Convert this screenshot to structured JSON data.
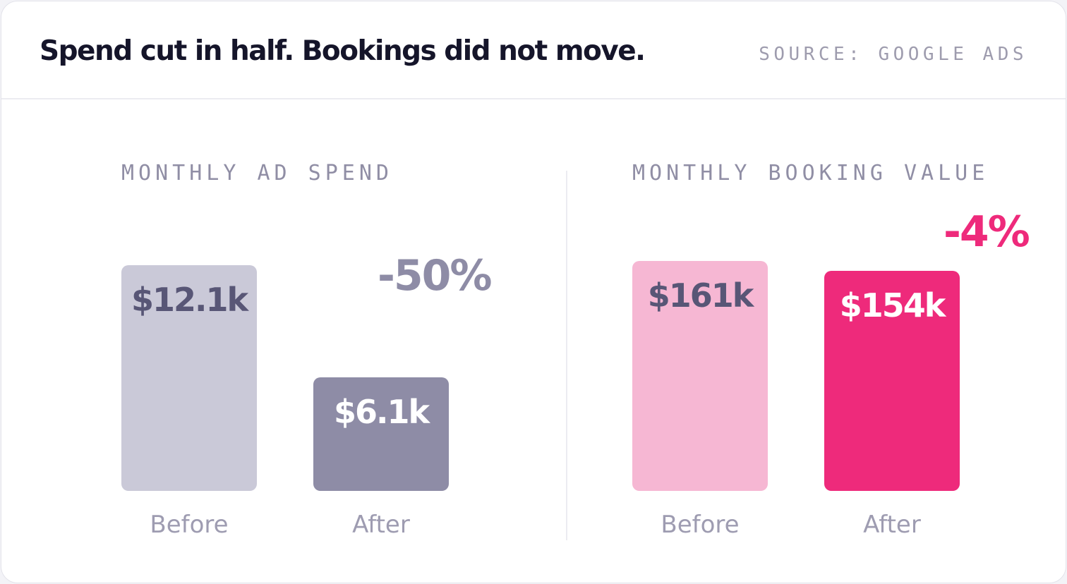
{
  "header": {
    "title": "Spend cut in half. Bookings did not move.",
    "source": "SOURCE: GOOGLE ADS"
  },
  "colors": {
    "spend_before_bar": "#cac9d8",
    "spend_after_bar": "#8e8ca6",
    "booking_before_bar": "#f6b7d3",
    "booking_after_bar": "#ee2a7b",
    "spend_change_text": "#8e8ca6",
    "booking_change_text": "#ee2a7b",
    "dark_value_text": "#585676",
    "light_value_text": "#ffffff"
  },
  "chart_data": [
    {
      "type": "bar",
      "title": "MONTHLY AD SPEND",
      "categories": [
        "Before",
        "After"
      ],
      "values": [
        12.1,
        6.1
      ],
      "value_labels": [
        "$12.1k",
        "$6.1k"
      ],
      "unit": "$k",
      "change_label": "-50%",
      "ylim": [
        0,
        12.1
      ]
    },
    {
      "type": "bar",
      "title": "MONTHLY BOOKING VALUE",
      "categories": [
        "Before",
        "After"
      ],
      "values": [
        161,
        154
      ],
      "value_labels": [
        "$161k",
        "$154k"
      ],
      "unit": "$k",
      "change_label": "-4%",
      "ylim": [
        0,
        161
      ]
    }
  ]
}
